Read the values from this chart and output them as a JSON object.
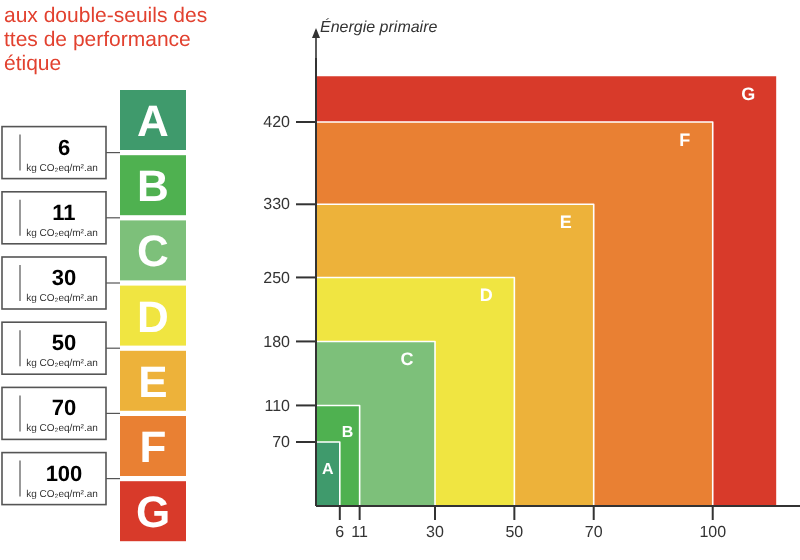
{
  "chart_data": {
    "type": "area",
    "title": "aux double-seuils des\nttes de performance\nétique",
    "ylabel": "Énergie primaire",
    "series": [
      {
        "name": "A",
        "color": "#3f9a6c",
        "x": [
          0,
          6
        ],
        "values": [
          70,
          70
        ]
      },
      {
        "name": "B",
        "color": "#4fb150",
        "x": [
          0,
          11
        ],
        "values": [
          110,
          110
        ]
      },
      {
        "name": "C",
        "color": "#7dc07a",
        "x": [
          0,
          30
        ],
        "values": [
          180,
          180
        ]
      },
      {
        "name": "D",
        "color": "#f0e541",
        "x": [
          0,
          50
        ],
        "values": [
          250,
          250
        ]
      },
      {
        "name": "E",
        "color": "#edb23a",
        "x": [
          0,
          70
        ],
        "values": [
          330,
          330
        ]
      },
      {
        "name": "F",
        "color": "#e98033",
        "x": [
          0,
          100
        ],
        "values": [
          420,
          420
        ]
      },
      {
        "name": "G",
        "color": "#d83a2a",
        "x": [
          0,
          116
        ],
        "values": [
          470,
          470
        ]
      }
    ],
    "xlim": [
      0,
      122
    ],
    "ylim": [
      0,
      490
    ],
    "xticks": [
      6,
      11,
      30,
      50,
      70,
      100
    ],
    "yticks": [
      70,
      110,
      180,
      250,
      330,
      420
    ],
    "annotations": [
      "6",
      "11",
      "30",
      "50",
      "70",
      "100",
      "kg CO₂eq/m².an"
    ]
  }
}
